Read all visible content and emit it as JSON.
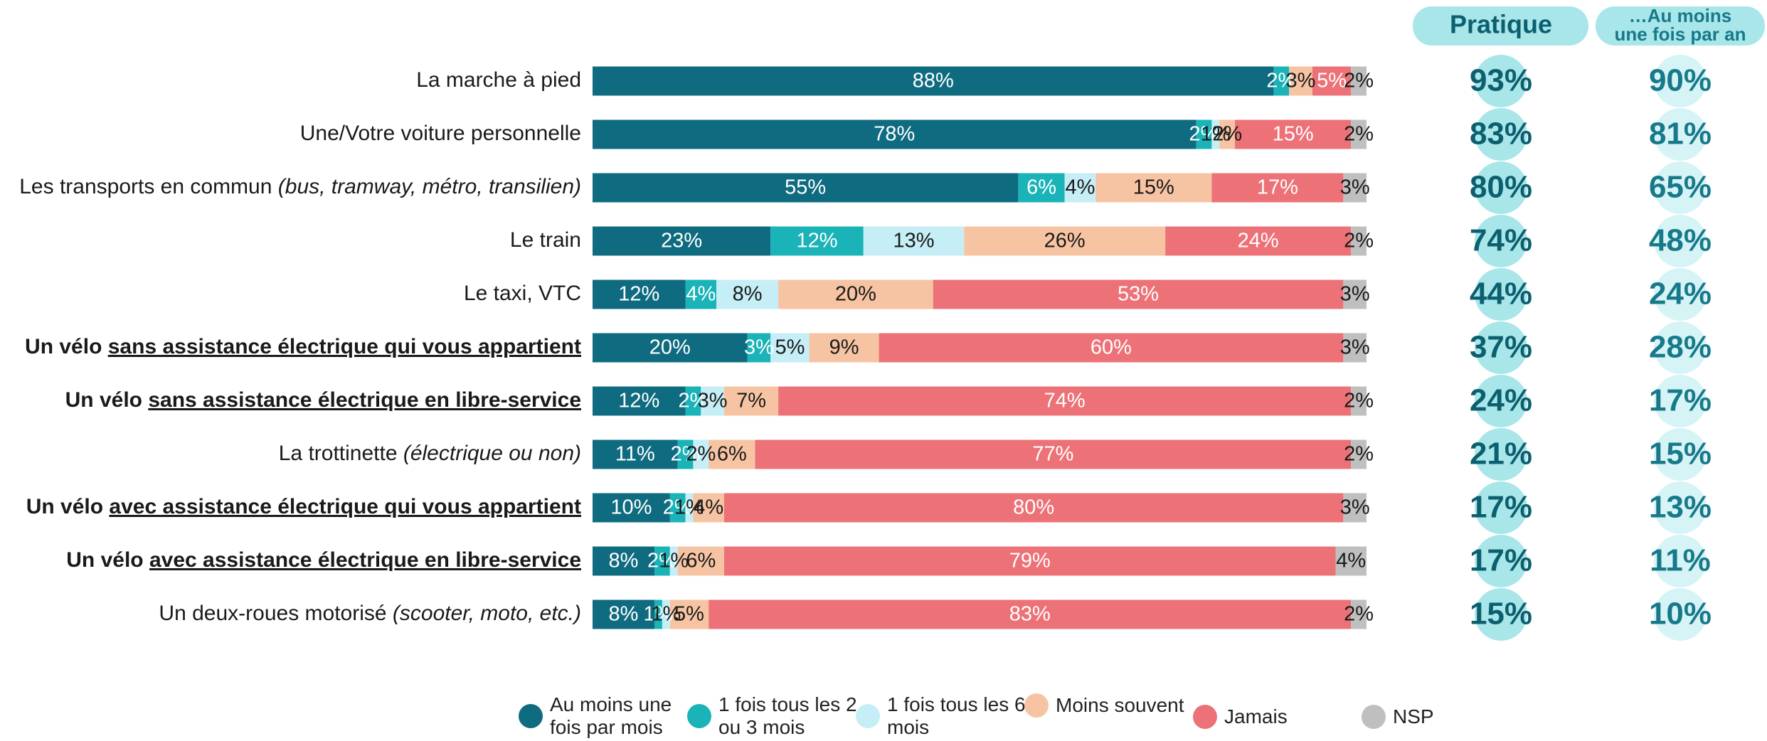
{
  "chart_data": {
    "type": "stacked-bar-horizontal",
    "xlim": [
      0,
      100
    ],
    "categories": [
      [
        {
          "text": "La marche à pied"
        }
      ],
      [
        {
          "text": "Une/Votre voiture personnelle"
        }
      ],
      [
        {
          "text": "Les transports en commun "
        },
        {
          "text": "(bus, tramway, métro, transilien)",
          "italic": true
        }
      ],
      [
        {
          "text": "Le train"
        }
      ],
      [
        {
          "text": "Le taxi, VTC"
        }
      ],
      [
        {
          "text": "Un vélo ",
          "bold": true
        },
        {
          "text": "sans assistance électrique qui vous appartient",
          "bold": true,
          "underline": true
        }
      ],
      [
        {
          "text": "Un vélo ",
          "bold": true
        },
        {
          "text": "sans assistance électrique en libre-service",
          "bold": true,
          "underline": true
        }
      ],
      [
        {
          "text": "La trottinette "
        },
        {
          "text": "(électrique ou non)",
          "italic": true
        }
      ],
      [
        {
          "text": "Un vélo ",
          "bold": true
        },
        {
          "text": "avec assistance électrique qui vous appartient",
          "bold": true,
          "underline": true
        }
      ],
      [
        {
          "text": "Un vélo ",
          "bold": true
        },
        {
          "text": "avec assistance électrique en libre-service",
          "bold": true,
          "underline": true
        }
      ],
      [
        {
          "text": "Un deux-roues motorisé "
        },
        {
          "text": "(scooter, moto, etc.)",
          "italic": true
        }
      ]
    ],
    "series": [
      {
        "name": "Au moins une fois par mois",
        "color": "#0f6b80",
        "label_color": "#ffffff",
        "values": [
          88,
          78,
          55,
          23,
          12,
          20,
          12,
          11,
          10,
          8,
          8
        ],
        "value_labels": [
          "88%",
          "78%",
          "55%",
          "23%",
          "12%",
          "20%",
          "12%",
          "11%",
          "10%",
          "8%",
          "8%"
        ]
      },
      {
        "name": "1 fois tous les 2 ou 3 mois",
        "color": "#1ab3b8",
        "label_color": "#ffffff",
        "values": [
          2,
          2,
          6,
          12,
          4,
          3,
          2,
          2,
          2,
          2,
          1
        ],
        "value_labels": [
          "2%",
          "2%",
          "6%",
          "12%",
          "4%",
          "3%",
          "2%",
          "2%",
          "2%",
          "2%",
          "1%"
        ]
      },
      {
        "name": "1 fois tous les 6 mois",
        "color": "#c5eef7",
        "label_color": "#1a1a1a",
        "values": [
          0,
          1,
          4,
          13,
          8,
          5,
          3,
          2,
          1,
          1,
          1
        ],
        "value_labels": [
          null,
          "1%",
          "4%",
          "13%",
          "8%",
          "5%",
          "3%",
          "2%",
          "1%",
          "1%",
          "1%"
        ]
      },
      {
        "name": "Moins souvent",
        "color": "#f7c4a3",
        "label_color": "#1a1a1a",
        "values": [
          3,
          2,
          15,
          26,
          20,
          9,
          7,
          6,
          4,
          6,
          5
        ],
        "value_labels": [
          "3%",
          "2%",
          "15%",
          "26%",
          "20%",
          "9%",
          "7%",
          "6%",
          "4%",
          "6%",
          "5%"
        ]
      },
      {
        "name": "Jamais",
        "color": "#ec7278",
        "label_color": "#ffffff",
        "values": [
          5,
          15,
          17,
          24,
          53,
          60,
          74,
          77,
          80,
          79,
          83
        ],
        "value_labels": [
          "5%",
          "15%",
          "17%",
          "24%",
          "53%",
          "60%",
          "74%",
          "77%",
          "80%",
          "79%",
          "83%"
        ]
      },
      {
        "name": "NSP",
        "color": "#bfbfbf",
        "label_color": "#1a1a1a",
        "values": [
          2,
          2,
          3,
          2,
          3,
          3,
          2,
          2,
          3,
          4,
          2
        ],
        "value_labels": [
          "2%",
          "2%",
          "3%",
          "2%",
          "3%",
          "3%",
          "2%",
          "2%",
          "3%",
          "4%",
          "2%"
        ]
      }
    ],
    "columns": [
      {
        "title": [
          "Pratique"
        ],
        "color": "#0c5f6e",
        "circle_color": "#a8e6ea",
        "values": [
          93,
          83,
          80,
          74,
          44,
          37,
          24,
          21,
          17,
          17,
          15
        ],
        "value_labels": [
          "93%",
          "83%",
          "80%",
          "74%",
          "44%",
          "37%",
          "24%",
          "21%",
          "17%",
          "17%",
          "15%"
        ]
      },
      {
        "title": [
          "…Au moins",
          "une fois par an"
        ],
        "color": "#17798a",
        "circle_color": "#d6f4f6",
        "values": [
          90,
          81,
          65,
          48,
          24,
          28,
          17,
          15,
          13,
          11,
          10
        ],
        "value_labels": [
          "90%",
          "81%",
          "65%",
          "48%",
          "24%",
          "28%",
          "17%",
          "15%",
          "13%",
          "11%",
          "10%"
        ]
      }
    ]
  }
}
